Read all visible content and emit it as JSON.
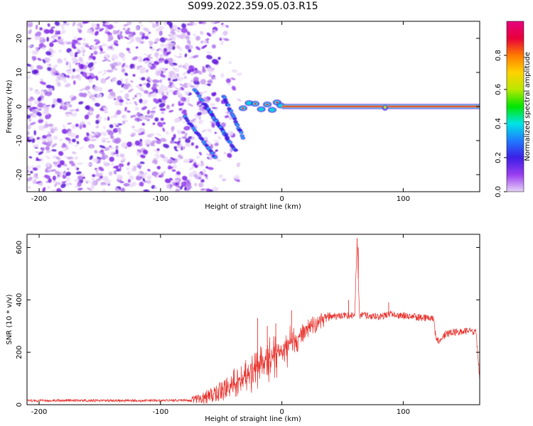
{
  "title": "S099.2022.359.05.03.R15",
  "chart_data": [
    {
      "type": "heatmap",
      "xlabel": "Height of straight line (km)",
      "ylabel": "Frequency (Hz)",
      "xlim": [
        -210,
        163
      ],
      "ylim": [
        -25,
        25
      ],
      "xticks": [
        -200,
        -100,
        0,
        100
      ],
      "yticks": [
        -20,
        -10,
        0,
        10,
        20
      ],
      "colorbar": {
        "label": "Normalized spectral amplitude",
        "range": [
          0,
          1
        ],
        "ticks": [
          0.0,
          0.2,
          0.4,
          0.6,
          0.8
        ],
        "colors": [
          "#e6d3f7",
          "#9a3df0",
          "#3c1ee6",
          "#1f7bff",
          "#00e5e5",
          "#00e600",
          "#b7e800",
          "#ffd200",
          "#ff7b00",
          "#e8003a",
          "#e6007e"
        ]
      },
      "features": {
        "noise_region_x": [
          -210,
          -75
        ],
        "fading_noise_x": [
          -80,
          -30
        ],
        "diagonal_streaks": [
          {
            "x": [
              -72,
              -45
            ],
            "freq": [
              5,
              -9
            ]
          },
          {
            "x": [
              -80,
              -55
            ],
            "freq": [
              -3,
              -15
            ]
          },
          {
            "x": [
              -62,
              -38
            ],
            "freq": [
              0,
              -13
            ]
          },
          {
            "x": [
              -48,
              -32
            ],
            "freq": [
              3,
              -9
            ]
          }
        ],
        "tone_freq": 0,
        "tone_start_x": 0,
        "tone_end_x": 163
      }
    },
    {
      "type": "line",
      "xlabel": "Height of straight line (km)",
      "ylabel": "SNR (10 * v/v)",
      "xlim": [
        -210,
        163
      ],
      "ylim": [
        0,
        650
      ],
      "xticks": [
        -200,
        -100,
        0,
        100
      ],
      "yticks": [
        0,
        200,
        400,
        600
      ],
      "color": "#e8312c",
      "series": [
        {
          "name": "SNR",
          "x": [
            -210,
            -180,
            -150,
            -120,
            -90,
            -75,
            -65,
            -55,
            -45,
            -38,
            -30,
            -25,
            -20,
            -15,
            -10,
            -5,
            0,
            10,
            20,
            30,
            40,
            50,
            55,
            60,
            62,
            64,
            70,
            80,
            90,
            100,
            110,
            120,
            125,
            127,
            130,
            135,
            140,
            150,
            160,
            163
          ],
          "y": [
            15,
            16,
            16,
            15,
            16,
            17,
            25,
            45,
            60,
            80,
            110,
            120,
            140,
            160,
            175,
            190,
            210,
            245,
            290,
            315,
            335,
            340,
            340,
            345,
            620,
            340,
            340,
            335,
            345,
            340,
            335,
            330,
            325,
            250,
            245,
            270,
            275,
            280,
            280,
            100
          ]
        }
      ],
      "spikes": [
        {
          "x": -20,
          "y": 330
        },
        {
          "x": -12,
          "y": 300
        },
        {
          "x": -5,
          "y": 310
        },
        {
          "x": 8,
          "y": 360
        },
        {
          "x": 55,
          "y": 400
        },
        {
          "x": 62,
          "y": 635
        },
        {
          "x": 63,
          "y": 600
        },
        {
          "x": 88,
          "y": 390
        }
      ]
    }
  ]
}
